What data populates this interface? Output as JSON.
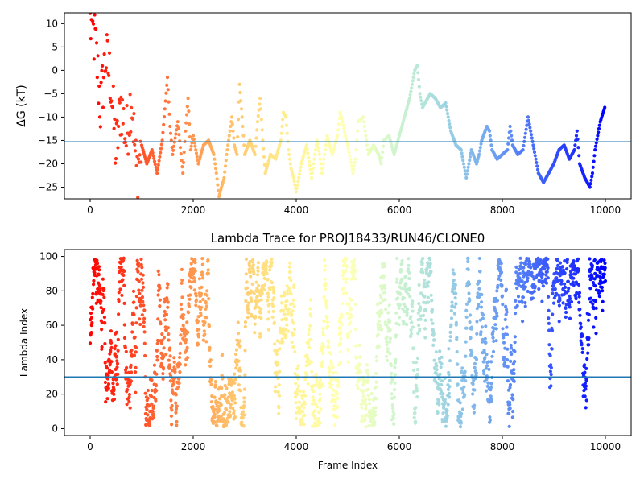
{
  "chart_data": [
    {
      "type": "scatter",
      "title": "",
      "xlabel": "",
      "ylabel": "ΔG (kT)",
      "xlim": [
        -500,
        10500
      ],
      "ylim": [
        -27.5,
        12.3
      ],
      "xticks": [
        0,
        2000,
        4000,
        6000,
        8000,
        10000
      ],
      "yticks": [
        -25,
        -20,
        -15,
        -10,
        -5,
        0,
        5,
        10
      ],
      "hline": -15.3,
      "hline_color": "#1f77b4",
      "colormap": "rainbow (frame 0 = red, frame 10000 = violet)",
      "marker": "filled circle",
      "trace_points": [
        [
          0,
          10
        ],
        [
          100,
          6
        ],
        [
          200,
          -8
        ],
        [
          300,
          3
        ],
        [
          400,
          -2
        ],
        [
          500,
          -18
        ],
        [
          600,
          -7
        ],
        [
          700,
          -15
        ],
        [
          800,
          -5
        ],
        [
          900,
          -22
        ],
        [
          1000,
          -16
        ],
        [
          1100,
          -20
        ],
        [
          1200,
          -17
        ],
        [
          1300,
          -22
        ],
        [
          1400,
          -15
        ],
        [
          1500,
          -1.5
        ],
        [
          1550,
          -12
        ],
        [
          1600,
          -18
        ],
        [
          1700,
          -11
        ],
        [
          1800,
          -22
        ],
        [
          1850,
          -13
        ],
        [
          1900,
          -6
        ],
        [
          1950,
          -17
        ],
        [
          2000,
          -14
        ],
        [
          2100,
          -20
        ],
        [
          2200,
          -16
        ],
        [
          2300,
          -15
        ],
        [
          2400,
          -18
        ],
        [
          2450,
          -22
        ],
        [
          2500,
          -27
        ],
        [
          2600,
          -23
        ],
        [
          2650,
          -18
        ],
        [
          2700,
          -14
        ],
        [
          2750,
          -10
        ],
        [
          2800,
          -16
        ],
        [
          2850,
          -18
        ],
        [
          2900,
          -3
        ],
        [
          2950,
          -10
        ],
        [
          3000,
          -18
        ],
        [
          3100,
          -15
        ],
        [
          3200,
          -18
        ],
        [
          3250,
          -11
        ],
        [
          3300,
          -6
        ],
        [
          3350,
          -15
        ],
        [
          3400,
          -22
        ],
        [
          3500,
          -18
        ],
        [
          3600,
          -19
        ],
        [
          3700,
          -15
        ],
        [
          3750,
          -9
        ],
        [
          3800,
          -10
        ],
        [
          3850,
          -17
        ],
        [
          3900,
          -21
        ],
        [
          3950,
          -23
        ],
        [
          4000,
          -26
        ],
        [
          4100,
          -20
        ],
        [
          4200,
          -16
        ],
        [
          4300,
          -23
        ],
        [
          4400,
          -15
        ],
        [
          4450,
          -18
        ],
        [
          4500,
          -22
        ],
        [
          4600,
          -14
        ],
        [
          4700,
          -18
        ],
        [
          4800,
          -14
        ],
        [
          4850,
          -9
        ],
        [
          4900,
          -11
        ],
        [
          4950,
          -14
        ],
        [
          5000,
          -16
        ],
        [
          5100,
          -22
        ],
        [
          5150,
          -19
        ],
        [
          5200,
          -11
        ],
        [
          5300,
          -10
        ],
        [
          5400,
          -18
        ],
        [
          5500,
          -16
        ],
        [
          5600,
          -18
        ],
        [
          5650,
          -20
        ],
        [
          5700,
          -15
        ],
        [
          5800,
          -14
        ],
        [
          5900,
          -18
        ],
        [
          6000,
          -14
        ],
        [
          6100,
          -10
        ],
        [
          6200,
          -6
        ],
        [
          6300,
          0
        ],
        [
          6350,
          1
        ],
        [
          6400,
          -5
        ],
        [
          6450,
          -8
        ],
        [
          6500,
          -7
        ],
        [
          6600,
          -5
        ],
        [
          6700,
          -6
        ],
        [
          6800,
          -8
        ],
        [
          6900,
          -7
        ],
        [
          7000,
          -13
        ],
        [
          7100,
          -16
        ],
        [
          7200,
          -17
        ],
        [
          7300,
          -23
        ],
        [
          7400,
          -17
        ],
        [
          7500,
          -20
        ],
        [
          7550,
          -18
        ],
        [
          7600,
          -15
        ],
        [
          7700,
          -12
        ],
        [
          7750,
          -13
        ],
        [
          7800,
          -17
        ],
        [
          7900,
          -19
        ],
        [
          8000,
          -18
        ],
        [
          8100,
          -17
        ],
        [
          8150,
          -12
        ],
        [
          8200,
          -16
        ],
        [
          8300,
          -18
        ],
        [
          8400,
          -17
        ],
        [
          8500,
          -10
        ],
        [
          8600,
          -16
        ],
        [
          8700,
          -22
        ],
        [
          8800,
          -24
        ],
        [
          8900,
          -22
        ],
        [
          9000,
          -20
        ],
        [
          9100,
          -17
        ],
        [
          9200,
          -16
        ],
        [
          9300,
          -19
        ],
        [
          9400,
          -17
        ],
        [
          9450,
          -13
        ],
        [
          9500,
          -20
        ],
        [
          9600,
          -23
        ],
        [
          9700,
          -25
        ],
        [
          9750,
          -22
        ],
        [
          9800,
          -17
        ],
        [
          9900,
          -11
        ],
        [
          10000,
          -7.5
        ]
      ]
    },
    {
      "type": "scatter",
      "title": "Lambda Trace for PROJ18433/RUN46/CLONE0",
      "xlabel": "Frame Index",
      "ylabel": "Lambda Index",
      "xlim": [
        -500,
        10500
      ],
      "ylim": [
        -4,
        104
      ],
      "xticks": [
        0,
        2000,
        4000,
        6000,
        8000,
        10000
      ],
      "yticks": [
        0,
        20,
        40,
        60,
        80,
        100
      ],
      "hline": 30,
      "hline_color": "#1f77b4",
      "colormap": "rainbow (frame 0 = red, frame 10000 = violet)",
      "marker": "filled circle",
      "values_range": [
        1,
        99
      ]
    }
  ]
}
